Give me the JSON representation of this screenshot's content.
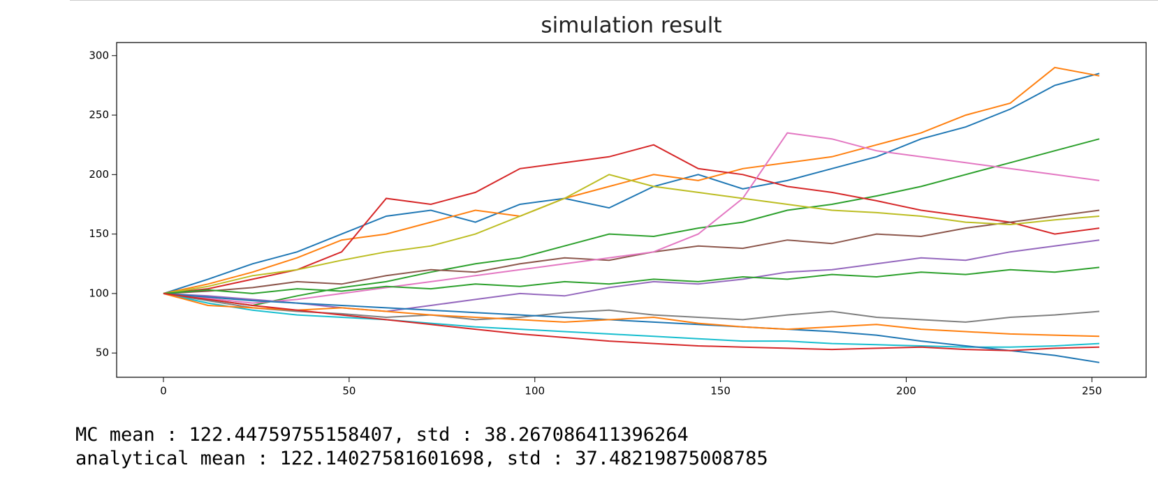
{
  "chart_data": {
    "type": "line",
    "title": "simulation result",
    "x": [
      0,
      12,
      24,
      36,
      48,
      60,
      72,
      84,
      96,
      108,
      120,
      132,
      144,
      156,
      168,
      180,
      192,
      204,
      216,
      228,
      240,
      252
    ],
    "series": [
      {
        "color": "#1f77b4",
        "values": [
          100,
          112,
          125,
          135,
          150,
          165,
          170,
          160,
          175,
          180,
          172,
          190,
          200,
          188,
          195,
          205,
          215,
          230,
          240,
          255,
          275,
          285
        ]
      },
      {
        "color": "#ff7f0e",
        "values": [
          100,
          108,
          118,
          130,
          145,
          150,
          160,
          170,
          165,
          180,
          190,
          200,
          195,
          205,
          210,
          215,
          225,
          235,
          250,
          260,
          290,
          283
        ]
      },
      {
        "color": "#2ca02c",
        "values": [
          100,
          95,
          90,
          98,
          105,
          110,
          118,
          125,
          130,
          140,
          150,
          148,
          155,
          160,
          170,
          175,
          182,
          190,
          200,
          210,
          220,
          230
        ]
      },
      {
        "color": "#d62728",
        "values": [
          100,
          104,
          112,
          120,
          135,
          180,
          175,
          185,
          205,
          210,
          215,
          225,
          205,
          200,
          190,
          185,
          178,
          170,
          165,
          160,
          150,
          155
        ]
      },
      {
        "color": "#9467bd",
        "values": [
          100,
          98,
          95,
          92,
          88,
          85,
          90,
          95,
          100,
          98,
          105,
          110,
          108,
          112,
          118,
          120,
          125,
          130,
          128,
          135,
          140,
          145
        ]
      },
      {
        "color": "#8c564b",
        "values": [
          100,
          102,
          105,
          110,
          108,
          115,
          120,
          118,
          125,
          130,
          128,
          135,
          140,
          138,
          145,
          142,
          150,
          148,
          155,
          160,
          165,
          170
        ]
      },
      {
        "color": "#e377c2",
        "values": [
          100,
          96,
          92,
          95,
          100,
          105,
          110,
          115,
          120,
          125,
          130,
          135,
          150,
          180,
          235,
          230,
          220,
          215,
          210,
          205,
          200,
          195
        ]
      },
      {
        "color": "#7f7f7f",
        "values": [
          100,
          94,
          88,
          85,
          83,
          80,
          82,
          78,
          80,
          84,
          86,
          82,
          80,
          78,
          82,
          85,
          80,
          78,
          76,
          80,
          82,
          85
        ]
      },
      {
        "color": "#bcbd22",
        "values": [
          100,
          106,
          115,
          120,
          128,
          135,
          140,
          150,
          165,
          180,
          200,
          190,
          185,
          180,
          175,
          170,
          168,
          165,
          160,
          158,
          162,
          165
        ]
      },
      {
        "color": "#17becf",
        "values": [
          100,
          92,
          86,
          82,
          80,
          78,
          75,
          72,
          70,
          68,
          66,
          64,
          62,
          60,
          60,
          58,
          57,
          56,
          55,
          55,
          56,
          58
        ]
      },
      {
        "color": "#1f77b4",
        "values": [
          100,
          97,
          94,
          92,
          90,
          88,
          86,
          84,
          82,
          80,
          78,
          76,
          74,
          72,
          70,
          68,
          65,
          60,
          56,
          52,
          48,
          42
        ]
      },
      {
        "color": "#ff7f0e",
        "values": [
          100,
          90,
          88,
          86,
          88,
          85,
          82,
          80,
          78,
          76,
          78,
          80,
          75,
          72,
          70,
          72,
          74,
          70,
          68,
          66,
          65,
          64
        ]
      },
      {
        "color": "#2ca02c",
        "values": [
          100,
          103,
          100,
          104,
          102,
          106,
          104,
          108,
          106,
          110,
          108,
          112,
          110,
          114,
          112,
          116,
          114,
          118,
          116,
          120,
          118,
          122
        ]
      },
      {
        "color": "#d62728",
        "values": [
          100,
          95,
          90,
          86,
          82,
          78,
          74,
          70,
          66,
          63,
          60,
          58,
          56,
          55,
          54,
          53,
          54,
          55,
          53,
          52,
          54,
          55
        ]
      }
    ],
    "xlim": [
      -12.6,
      264.6
    ],
    "ylim": [
      29.6,
      311
    ],
    "xticks": [
      0,
      50,
      100,
      150,
      200,
      250
    ],
    "yticks": [
      50,
      100,
      150,
      200,
      250,
      300
    ]
  },
  "output": [
    "MC mean : 122.44759755158407, std : 38.267086411396264",
    "analytical mean : 122.14027581601698, std : 37.48219875008785"
  ]
}
